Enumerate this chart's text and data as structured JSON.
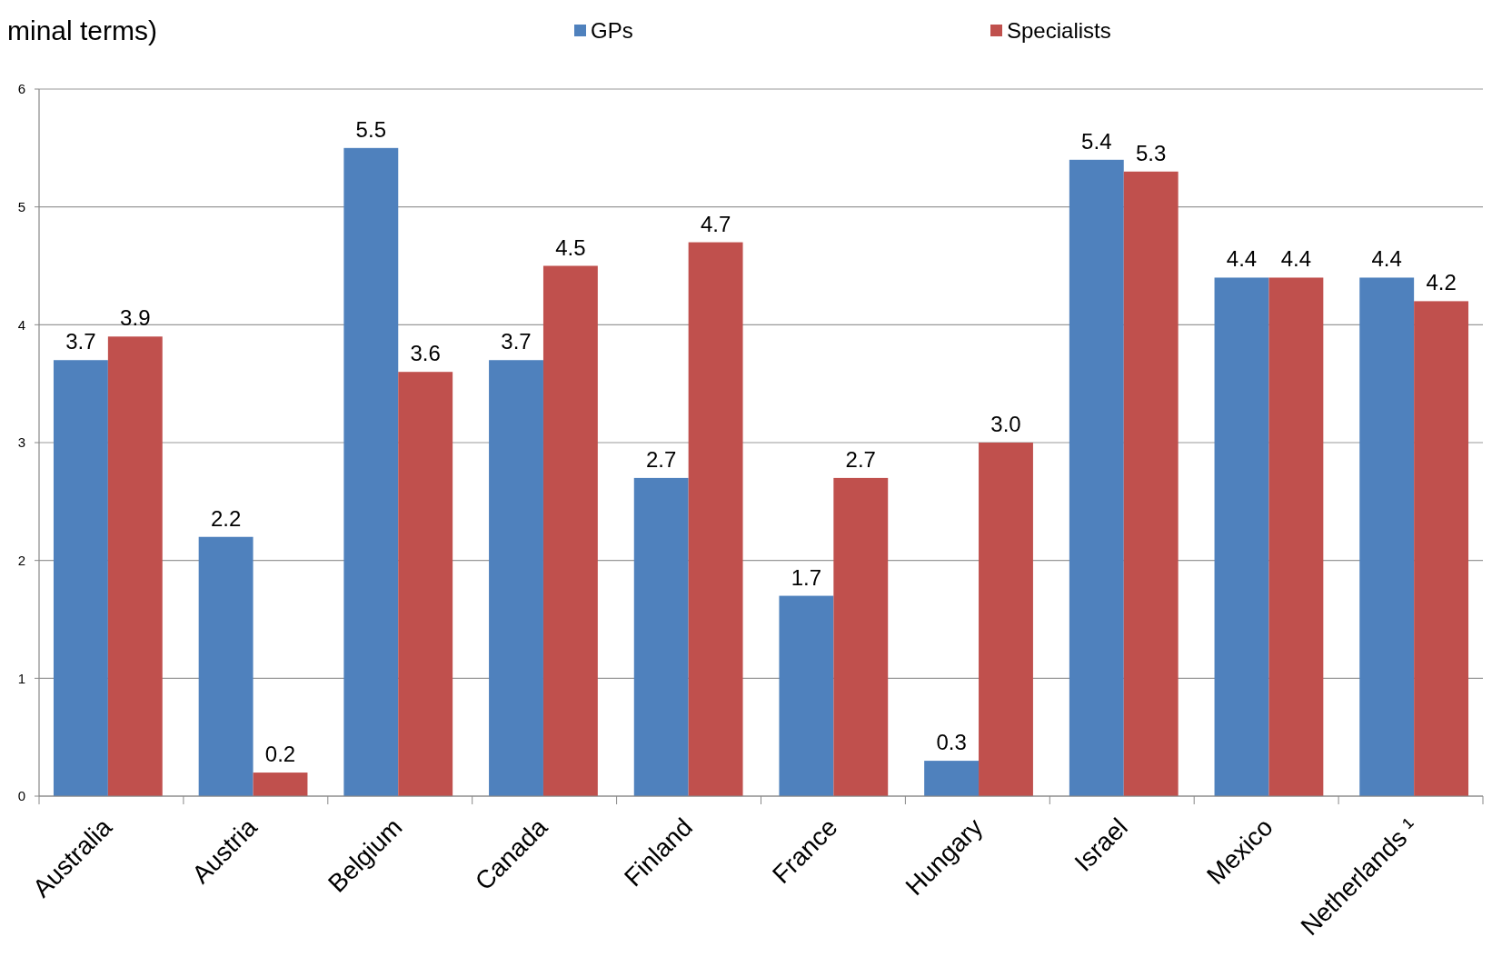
{
  "chart_data": {
    "type": "bar",
    "title": "minal terms)",
    "categories": [
      "Australia",
      "Austria",
      "Belgium",
      "Canada",
      "Finland",
      "France",
      "Hungary",
      "Israel",
      "Mexico",
      "Netherlands ¹"
    ],
    "series": [
      {
        "name": "GPs",
        "color": "#4f81bd",
        "values": [
          3.7,
          2.2,
          5.5,
          3.7,
          2.7,
          1.7,
          0.3,
          5.4,
          4.4,
          4.4
        ],
        "value_labels": [
          "3.7",
          "2.2",
          "5.5",
          "3.7",
          "2.7",
          "1.7",
          "0.3",
          "5.4",
          "4.4",
          "4.4"
        ]
      },
      {
        "name": "Specialists",
        "color": "#c0504d",
        "values": [
          3.9,
          0.2,
          3.6,
          4.5,
          4.7,
          2.7,
          3.0,
          5.3,
          4.4,
          4.2
        ],
        "value_labels": [
          "3.9",
          "0.2",
          "3.6",
          "4.5",
          "4.7",
          "2.7",
          "3.0",
          "5.3",
          "4.4",
          "4.2"
        ]
      }
    ],
    "ylim": [
      0,
      6
    ],
    "yticks": [
      0,
      1,
      2,
      3,
      4,
      5,
      6
    ],
    "grid": "y",
    "legend": "top"
  }
}
